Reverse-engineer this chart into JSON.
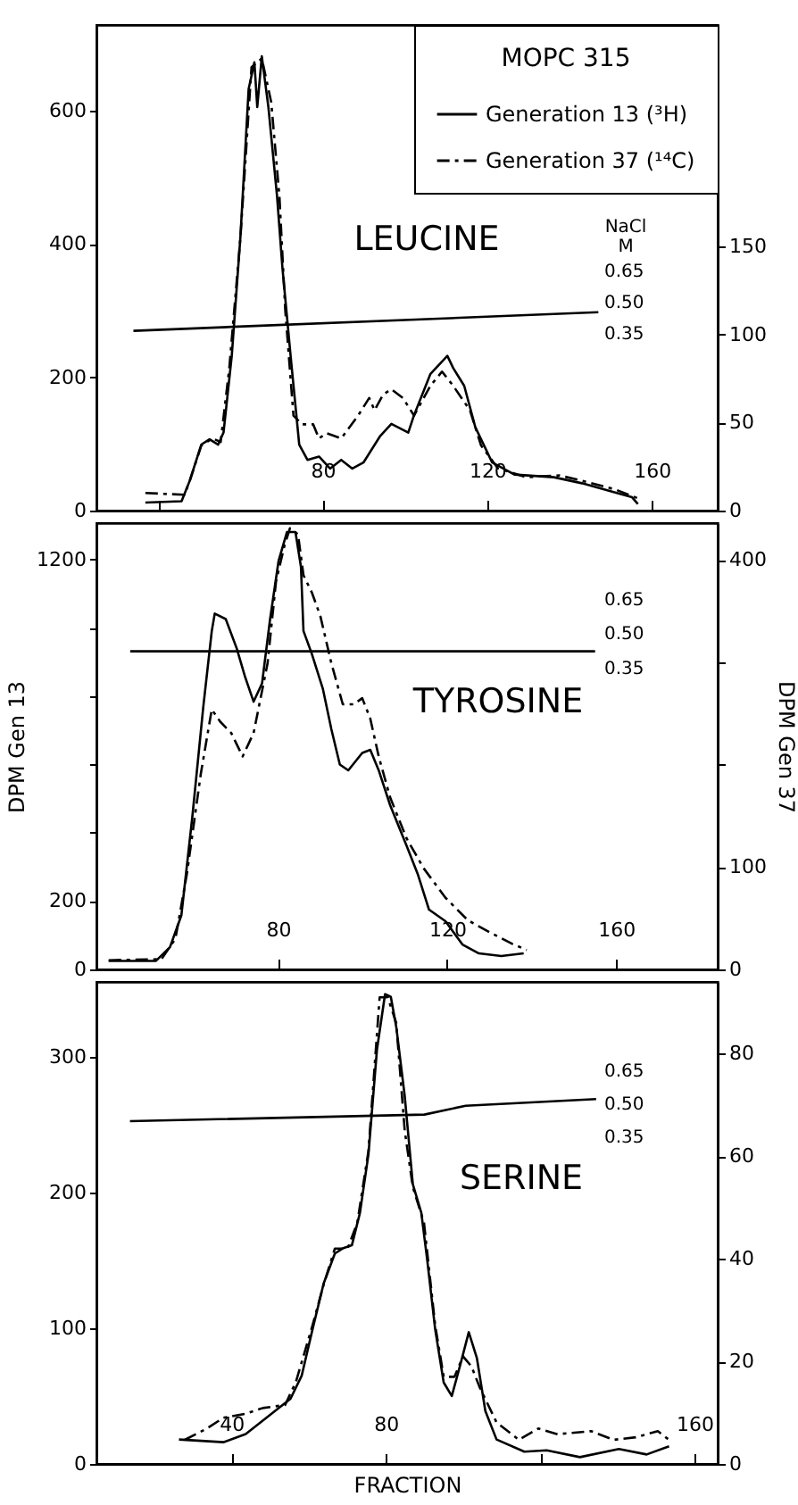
{
  "chart_data": [
    {
      "type": "line",
      "title": "LEUCINE",
      "legend_title": "MOPC 315",
      "y3label": "NaCl\nM",
      "xlim": [
        25,
        176
      ],
      "xticks": [
        {
          "value": 40,
          "label": null
        },
        80,
        120,
        160
      ],
      "ylim": [
        0,
        728
      ],
      "yticks": [
        0,
        200,
        400,
        600
      ],
      "y2lim": [
        0,
        276
      ],
      "y2ticks": [
        0,
        50,
        100,
        150
      ],
      "y3lim": [
        -0.51,
        1.84
      ],
      "y3ticks": [
        {
          "value": 0.35,
          "label": "0.35"
        },
        {
          "value": 0.5,
          "label": "0.50"
        },
        {
          "value": 0.65,
          "label": "0.65"
        }
      ],
      "grid": false,
      "legend": "top right",
      "series": [
        {
          "name": "Generation 13 (³H)",
          "color": "#000000",
          "line_style": "solid",
          "x": [
            36.9,
            45.7,
            47.7,
            50.5,
            52.5,
            54.6,
            55.9,
            57.9,
            60.0,
            62.0,
            63.4,
            64.1,
            65.2,
            66.8,
            68.9,
            70.2,
            72.2,
            74.3,
            76.3,
            79.1,
            81.8,
            84.5,
            87.2,
            89.9,
            94.0,
            96.7,
            100.8,
            102.2,
            106.2,
            110.3,
            111.7,
            114.4,
            117.1,
            121.2,
            126.6,
            136.2,
            143.0,
            151.1,
            155.2,
            156.6
          ],
          "values": [
            12,
            14,
            45,
            99,
            107,
            99,
            117,
            232,
            410,
            632,
            672,
            605,
            681,
            605,
            472,
            365,
            232,
            99,
            76,
            81,
            63,
            76,
            63,
            72,
            112,
            130,
            117,
            143,
            205,
            232,
            214,
            187,
            125,
            72,
            54,
            50,
            41,
            27,
            20,
            10
          ]
        },
        {
          "name": "Generation 37 (¹⁴C)",
          "color": "#000000",
          "line_style": "dashed",
          "axis": "y2",
          "x": [
            36.9,
            46.4,
            47.7,
            50.5,
            53.2,
            55.2,
            57.3,
            60.0,
            62.7,
            65.2,
            67.5,
            69.5,
            70.9,
            72.9,
            75.0,
            77.7,
            79.1,
            80.9,
            84.5,
            88.6,
            91.3,
            92.6,
            94.7,
            96.7,
            99.5,
            102.2,
            106.2,
            109.0,
            111.7,
            115.8,
            118.5,
            122.6,
            129.4,
            137.5,
            143.0,
            151.1,
            156.6
          ],
          "values": [
            10,
            9,
            17,
            37,
            41,
            39,
            81,
            155,
            252,
            257,
            232,
            178,
            114,
            54,
            49,
            49,
            41,
            44,
            41,
            54,
            64,
            57,
            66,
            69,
            64,
            54,
            71,
            79,
            71,
            57,
            37,
            24,
            19,
            20,
            17,
            12,
            7
          ]
        },
        {
          "color": "#000000",
          "line_style": "solid",
          "axis": "y3",
          "x": [
            34,
            147
          ],
          "values": [
            0.36,
            0.45
          ]
        }
      ]
    },
    {
      "type": "line",
      "title": "TYROSINE",
      "ylabel": "DPM Gen 13",
      "y2label": "DPM Gen 37",
      "xlim": [
        37,
        184
      ],
      "xticks": [
        80,
        120,
        160
      ],
      "ylim": [
        0,
        1307
      ],
      "yticks": [
        0,
        200,
        {
          "value": 400,
          "label": null
        },
        {
          "value": 600,
          "label": null
        },
        {
          "value": 800,
          "label": null
        },
        {
          "value": 1000,
          "label": null
        },
        1200
      ],
      "y2lim": [
        0,
        436
      ],
      "y2ticks": [
        0,
        100,
        {
          "value": 200,
          "label": null
        },
        {
          "value": 300,
          "label": null
        },
        400
      ],
      "y3lim": [
        -0.97,
        0.98
      ],
      "y3ticks": [
        {
          "value": 0.35,
          "label": "0.35"
        },
        {
          "value": 0.5,
          "label": "0.50"
        },
        {
          "value": 0.65,
          "label": "0.65"
        }
      ],
      "grid": false,
      "series": [
        {
          "color": "#000000",
          "line_style": "solid",
          "x": [
            39.9,
            51.1,
            54.4,
            57.1,
            59.7,
            62.3,
            64.3,
            65.0,
            67.6,
            70.2,
            72.2,
            74.2,
            76.2,
            78.1,
            80.1,
            82.1,
            84.1,
            85.4,
            86.0,
            88.0,
            90.6,
            92.6,
            94.6,
            96.6,
            99.9,
            101.8,
            103.8,
            106.5,
            110.4,
            113.1,
            115.7,
            119.6,
            123.6,
            127.5,
            132.8,
            138.1
          ],
          "values": [
            25,
            25,
            65,
            158,
            447,
            770,
            991,
            1042,
            1026,
            940,
            856,
            784,
            838,
            1026,
            1196,
            1281,
            1281,
            1179,
            991,
            923,
            821,
            703,
            600,
            583,
            634,
            643,
            583,
            481,
            362,
            277,
            175,
            141,
            73,
            47,
            39,
            47
          ]
        },
        {
          "color": "#000000",
          "line_style": "dashed",
          "axis": "y2",
          "x": [
            39.9,
            52.4,
            55.7,
            58.4,
            61.7,
            64.3,
            66.3,
            68.9,
            71.6,
            74.2,
            77.5,
            79.5,
            81.5,
            82.8,
            84.7,
            86.0,
            88.0,
            90.0,
            92.6,
            95.3,
            97.9,
            99.9,
            101.8,
            103.8,
            106.5,
            110.4,
            114.4,
            119.6,
            124.9,
            130.2,
            135.4,
            138.8
          ],
          "values": [
            9,
            10,
            30,
            93,
            191,
            254,
            242,
            231,
            208,
            231,
            299,
            379,
            414,
            431,
            425,
            385,
            368,
            345,
            299,
            259,
            259,
            265,
            245,
            208,
            168,
            128,
            99,
            70,
            48,
            36,
            25,
            19
          ]
        },
        {
          "color": "#000000",
          "line_style": "solid",
          "axis": "y3",
          "x": [
            45,
            155
          ],
          "values": [
            0.42,
            0.42
          ]
        }
      ]
    },
    {
      "type": "line",
      "title": "SERINE",
      "xlabel": "FRACTION",
      "xlim": [
        5,
        166
      ],
      "xticks": [
        40,
        80,
        {
          "value": 120,
          "label": null
        },
        160
      ],
      "ylim": [
        0,
        355
      ],
      "yticks": [
        0,
        100,
        200,
        300
      ],
      "y2lim": [
        0,
        94
      ],
      "y2ticks": [
        0,
        20,
        40,
        60,
        80
      ],
      "y3lim": [
        -1.13,
        1.05
      ],
      "y3ticks": [
        {
          "value": 0.35,
          "label": "0.35"
        },
        {
          "value": 0.5,
          "label": "0.50"
        },
        {
          "value": 0.65,
          "label": "0.65"
        }
      ],
      "grid": false,
      "series": [
        {
          "color": "#000000",
          "line_style": "solid",
          "x": [
            26.4,
            37.9,
            43.7,
            49.5,
            55.3,
            58.2,
            61.0,
            63.9,
            66.8,
            69.0,
            71.2,
            73.3,
            75.5,
            77.7,
            79.8,
            81.3,
            82.7,
            84.9,
            87.0,
            89.2,
            90.7,
            92.8,
            95.0,
            97.1,
            99.3,
            101.5,
            103.6,
            105.8,
            108.7,
            115.9,
            121.7,
            130.3,
            140.4,
            147.6,
            153.4
          ],
          "values": [
            18,
            16,
            22,
            35,
            48,
            65,
            99,
            133,
            155,
            159,
            161,
            185,
            228,
            305,
            346,
            344,
            322,
            271,
            206,
            185,
            151,
            99,
            60,
            50,
            73,
            97,
            78,
            39,
            18,
            9,
            10,
            5,
            11,
            7,
            13
          ]
        },
        {
          "color": "#000000",
          "line_style": "dashed",
          "axis": "y2",
          "x": [
            27.9,
            33.6,
            37.9,
            43.7,
            48.1,
            53.9,
            56.7,
            61.0,
            63.9,
            66.8,
            70.1,
            72.6,
            75.5,
            78.4,
            80.5,
            82.7,
            84.9,
            87.0,
            89.9,
            92.8,
            95.0,
            97.8,
            100.0,
            102.2,
            104.3,
            108.7,
            114.5,
            119.5,
            124.5,
            133.2,
            139.0,
            144.8,
            150.5,
            153.4
          ],
          "values": [
            4.7,
            6.9,
            9.0,
            9.8,
            10.9,
            11.5,
            16,
            27,
            35,
            42,
            42,
            47,
            61,
            91,
            91,
            86,
            65,
            54,
            47,
            27,
            17,
            17,
            21,
            19,
            15,
            8.1,
            4.7,
            6.9,
            5.8,
            6.4,
            4.7,
            5.2,
            6.4,
            4.7
          ]
        },
        {
          "color": "#000000",
          "line_style": "solid",
          "axis": "y3",
          "x": [
            13.7,
            90,
            100.7,
            134.5
          ],
          "values": [
            0.42,
            0.45,
            0.49,
            0.52
          ]
        }
      ]
    }
  ]
}
